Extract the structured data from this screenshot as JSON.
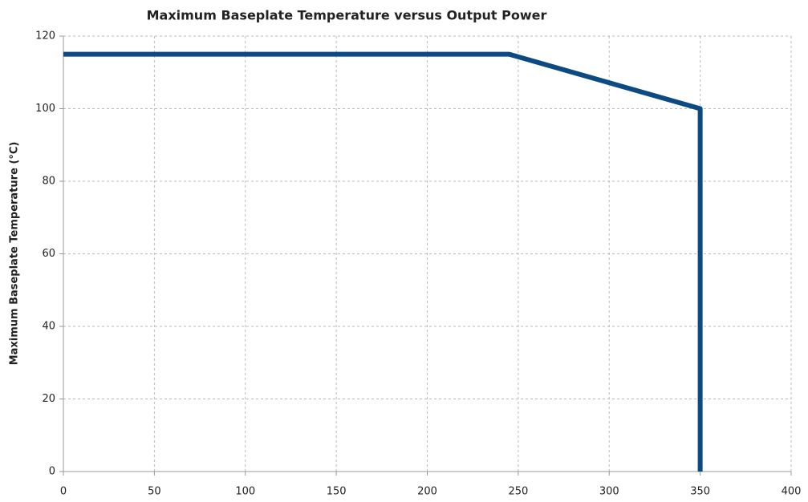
{
  "chart_data": {
    "type": "line",
    "title": "Maximum Baseplate Temperature versus Output Power",
    "y_label": "Maximum Baseplate Temperature (°C)",
    "x": [
      0,
      245,
      350,
      350
    ],
    "series": [
      {
        "name": "Maximum Baseplate Temperature",
        "color": "#0b4a82",
        "values": [
          115,
          115,
          100,
          0
        ]
      }
    ],
    "xlim": [
      0,
      400
    ],
    "xticks": [
      0,
      50,
      100,
      150,
      200,
      250,
      300,
      350,
      400
    ],
    "ylim": [
      0,
      120
    ],
    "yticks": [
      0,
      20,
      40,
      60,
      80,
      100,
      120
    ],
    "grid": true
  }
}
